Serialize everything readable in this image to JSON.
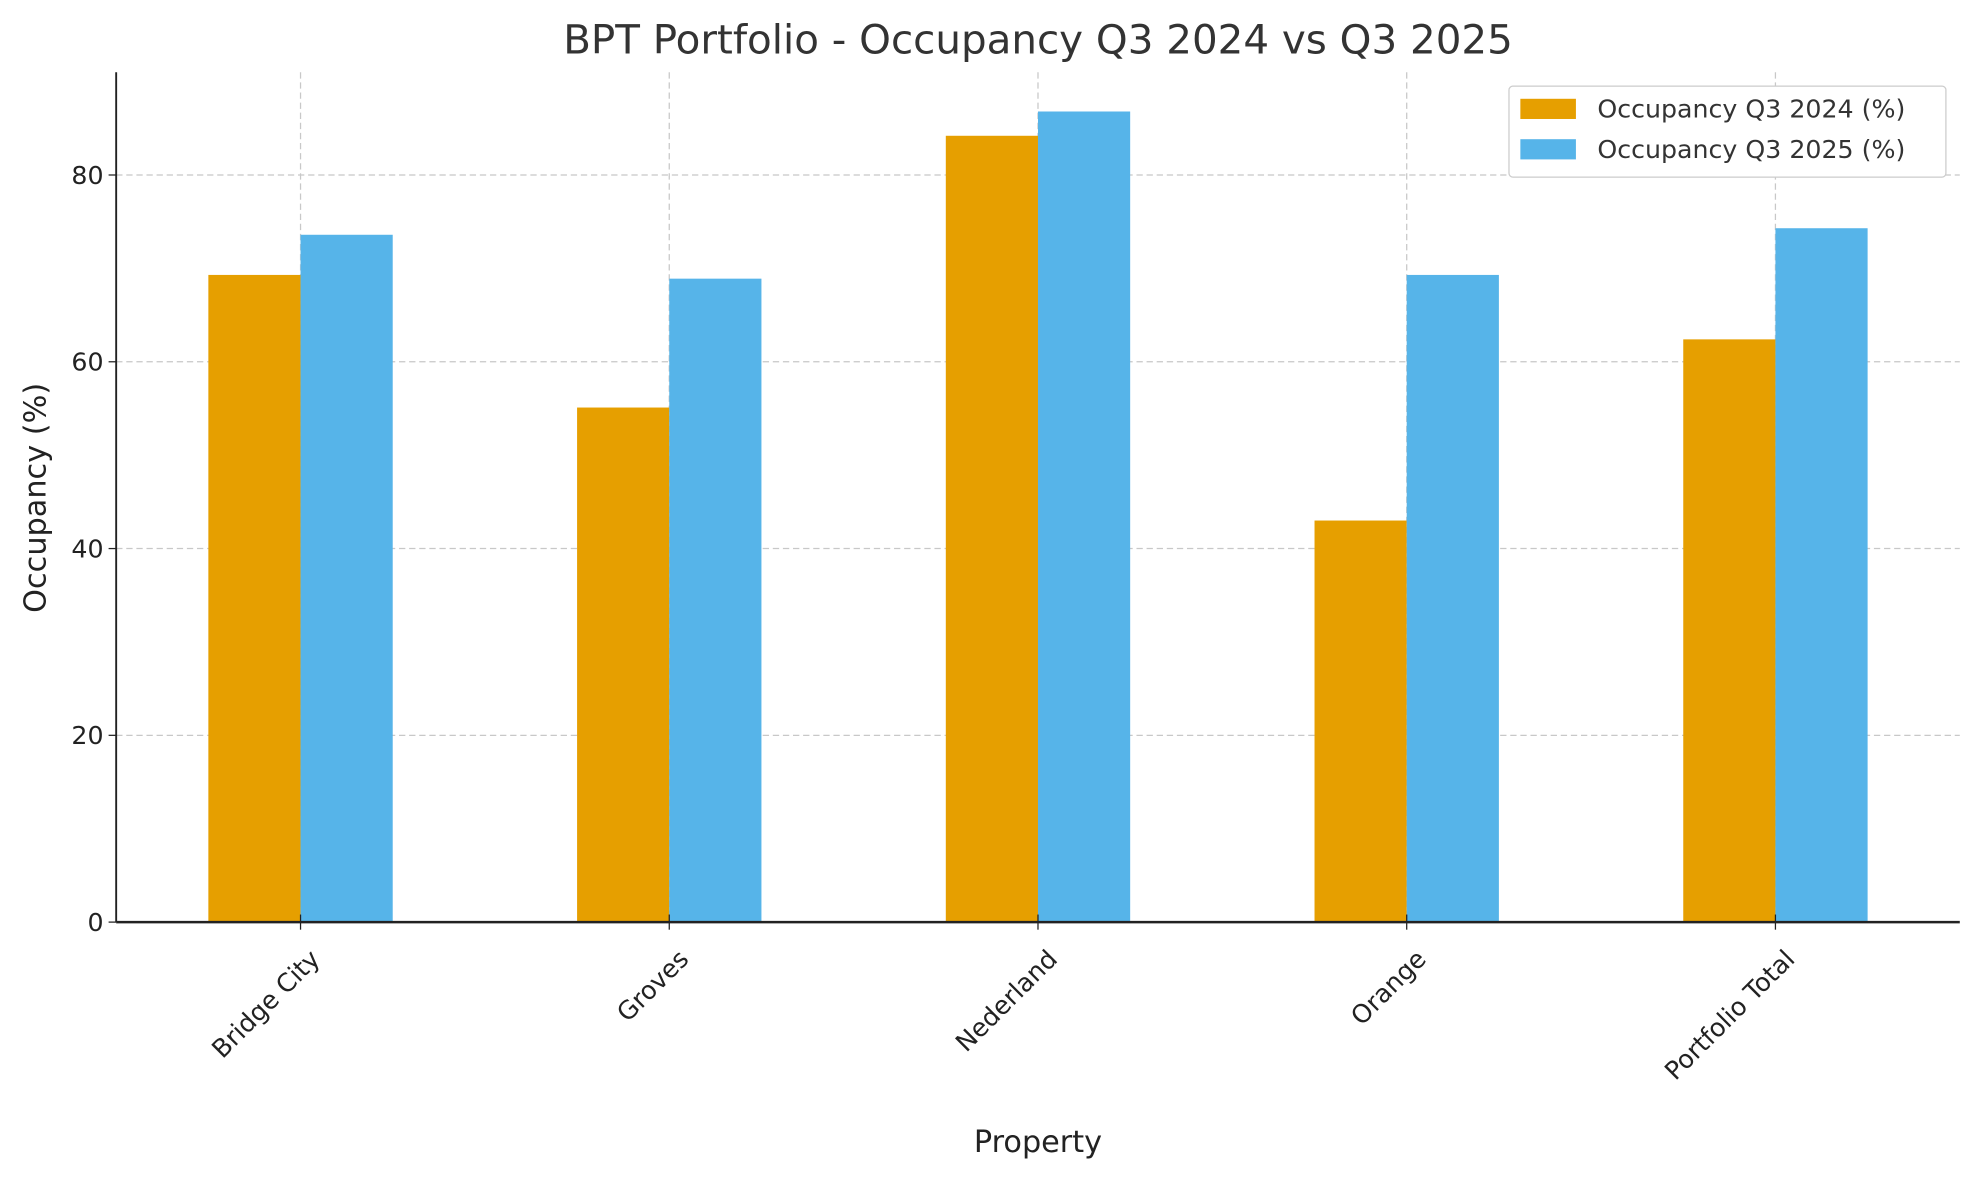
{
  "chart_data": {
    "type": "bar",
    "title": "BPT Portfolio - Occupancy Q3 2024 vs Q3 2025",
    "xlabel": "Property",
    "ylabel": "Occupancy (%)",
    "categories": [
      "Bridge City",
      "Groves",
      "Nederland",
      "Orange",
      "Portfolio Total"
    ],
    "series": [
      {
        "name": "Occupancy Q3 2024 (%)",
        "color": "#E69F00",
        "values": [
          69.3,
          55.1,
          84.2,
          43.0,
          62.4
        ]
      },
      {
        "name": "Occupancy Q3 2025 (%)",
        "color": "#56B4E9",
        "values": [
          73.6,
          68.9,
          86.8,
          69.3,
          74.3
        ]
      }
    ],
    "yticks": [
      0,
      20,
      40,
      60,
      80
    ],
    "ylim": [
      0,
      91
    ],
    "grid": true,
    "legend": "top-right"
  }
}
